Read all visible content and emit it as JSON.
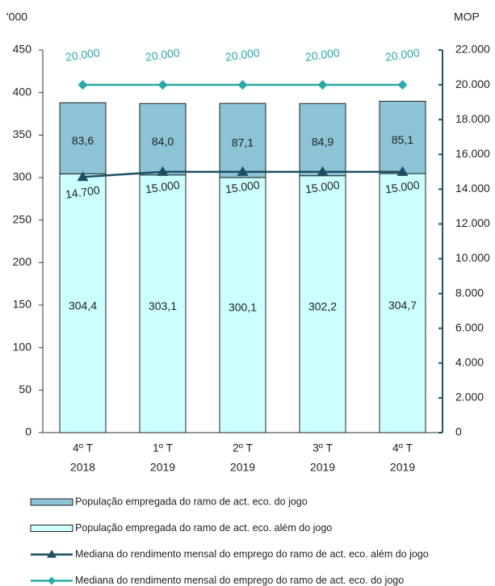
{
  "chart_data": {
    "type": "bar",
    "y_label": "'000",
    "y2_label": "MOP",
    "categories": [
      [
        "4º T",
        "2018"
      ],
      [
        "1º T",
        "2019"
      ],
      [
        "2º T",
        "2019"
      ],
      [
        "3º T",
        "2019"
      ],
      [
        "4º T",
        "2019"
      ]
    ],
    "ylim": [
      0,
      450
    ],
    "yticks": [
      0,
      50,
      100,
      150,
      200,
      250,
      300,
      350,
      400,
      450
    ],
    "y2lim": [
      0,
      22000
    ],
    "y2ticks": [
      0,
      {
        "value": 2000,
        "label": "2.000"
      },
      {
        "value": 4000,
        "label": "4.000"
      },
      {
        "value": 6000,
        "label": "6.000"
      },
      {
        "value": 8000,
        "label": "8.000"
      },
      {
        "value": 10000,
        "label": "10.000"
      },
      {
        "value": 12000,
        "label": "12.000"
      },
      {
        "value": 14000,
        "label": "14.000"
      },
      {
        "value": 16000,
        "label": "16.000"
      },
      {
        "value": 18000,
        "label": "18.000"
      },
      {
        "value": 20000,
        "label": "20.000"
      },
      {
        "value": 22000,
        "label": "22.000"
      }
    ],
    "series": [
      {
        "name": "População empregada do ramo de act. eco. do jogo",
        "type": "bar",
        "color": "#8cc4d6",
        "values": [
          83.6,
          84.0,
          87.1,
          84.9,
          85.1
        ],
        "value_labels": [
          "83,6",
          "84,0",
          "87,1",
          "84,9",
          "85,1"
        ]
      },
      {
        "name": "População empregada do ramo de act. eco. além do jogo",
        "type": "bar",
        "color": "#ccffff",
        "values": [
          304.4,
          303.1,
          300.1,
          302.2,
          304.7
        ],
        "value_labels": [
          "304,4",
          "303,1",
          "300,1",
          "302,2",
          "304,7"
        ]
      },
      {
        "name": "Mediana do rendimento mensal do emprego do ramo de act. eco. além do jogo",
        "type": "line",
        "axis": "y2",
        "marker": "triangle",
        "color": "#1d4f63",
        "values": [
          14700,
          15000,
          15000,
          15000,
          15000
        ],
        "value_labels": [
          "14.700",
          "15.000",
          "15.000",
          "15.000",
          "15.000"
        ]
      },
      {
        "name": "Mediana do rendimento mensal do emprego do ramo de act. eco. do jogo",
        "type": "line",
        "axis": "y2",
        "marker": "diamond",
        "color": "#2aa9a9",
        "values": [
          20000,
          20000,
          20000,
          20000,
          20000
        ],
        "value_labels": [
          "20.000",
          "20.000",
          "20.000",
          "20.000",
          "20.000"
        ]
      }
    ]
  }
}
